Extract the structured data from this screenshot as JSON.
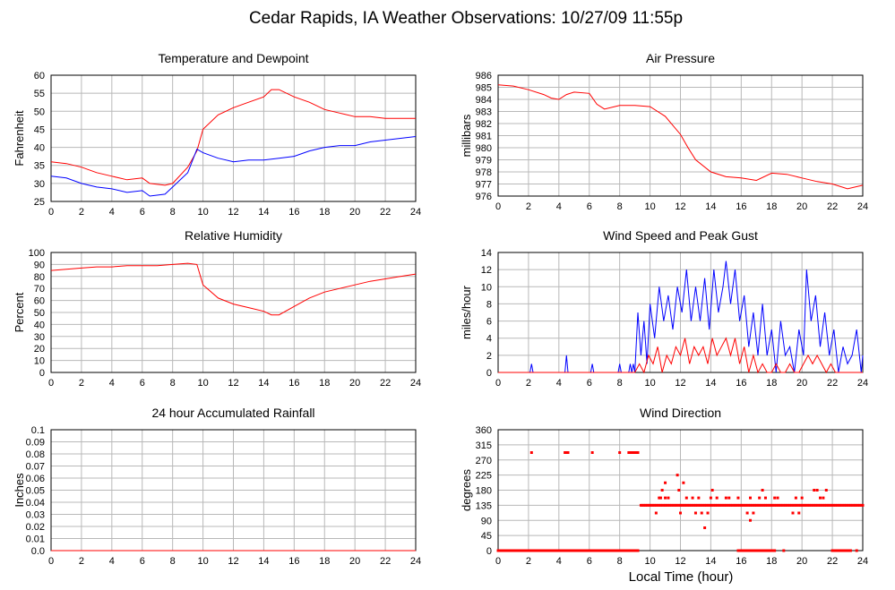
{
  "title": "Cedar Rapids, IA Weather Observations: 10/27/09 11:55p",
  "xlabel": "Local Time (hour)",
  "chart_data": [
    {
      "type": "line",
      "title": "Temperature and Dewpoint",
      "ylabel": "Fahrenheit",
      "xlim": [
        0,
        24
      ],
      "ylim": [
        25,
        60
      ],
      "xticks": [
        0,
        2,
        4,
        6,
        8,
        10,
        12,
        14,
        16,
        18,
        20,
        22,
        24
      ],
      "yticks": [
        25,
        30,
        35,
        40,
        45,
        50,
        55,
        60
      ],
      "grid": true,
      "series": [
        {
          "color": "#ff0000",
          "x": [
            0,
            1,
            2,
            3,
            4,
            5,
            6,
            6.5,
            7.5,
            8,
            9,
            9.6,
            10,
            11,
            12,
            13,
            14,
            14.5,
            15,
            16,
            17,
            18,
            19,
            20,
            21,
            22,
            23,
            24
          ],
          "y": [
            36,
            35.5,
            34.5,
            33,
            32,
            31,
            31.5,
            30,
            29.5,
            30,
            34.5,
            39,
            45,
            49,
            51,
            52.5,
            54,
            56,
            56,
            54,
            52.5,
            50.5,
            49.5,
            48.5,
            48.5,
            48,
            48,
            48
          ]
        },
        {
          "color": "#0000ff",
          "x": [
            0,
            1,
            2,
            3,
            4,
            5,
            6,
            6.5,
            7.5,
            8,
            9,
            9.6,
            10,
            11,
            12,
            13,
            14,
            15,
            16,
            17,
            18,
            19,
            20,
            21,
            22,
            23,
            24
          ],
          "y": [
            32,
            31.5,
            30,
            29,
            28.5,
            27.5,
            28,
            26.5,
            27,
            29,
            33,
            39.5,
            38.5,
            37,
            36,
            36.5,
            36.5,
            37,
            37.5,
            39,
            40,
            40.5,
            40.5,
            41.5,
            42,
            42.5,
            43
          ]
        }
      ]
    },
    {
      "type": "line",
      "title": "Air Pressure",
      "ylabel": "millibars",
      "xlim": [
        0,
        24
      ],
      "ylim": [
        976,
        986
      ],
      "xticks": [
        0,
        2,
        4,
        6,
        8,
        10,
        12,
        14,
        16,
        18,
        20,
        22,
        24
      ],
      "yticks": [
        976,
        977,
        978,
        979,
        980,
        981,
        982,
        983,
        984,
        985,
        986
      ],
      "grid": true,
      "series": [
        {
          "color": "#ff0000",
          "x": [
            0,
            1,
            2,
            3,
            3.5,
            4,
            4.5,
            5,
            6,
            6.5,
            7,
            8,
            9,
            10,
            11,
            12,
            12.5,
            13,
            14,
            15,
            16,
            17,
            18,
            19,
            20,
            21,
            22,
            23,
            24
          ],
          "y": [
            985.2,
            985.1,
            984.8,
            984.4,
            984.1,
            984.0,
            984.4,
            984.6,
            984.5,
            983.6,
            983.2,
            983.5,
            983.5,
            983.4,
            982.6,
            981.1,
            980.0,
            979.0,
            978.0,
            977.6,
            977.5,
            977.3,
            977.9,
            977.8,
            977.5,
            977.2,
            977.0,
            976.6,
            976.9
          ]
        }
      ]
    },
    {
      "type": "line",
      "title": "Relative Humidity",
      "ylabel": "Percent",
      "xlim": [
        0,
        24
      ],
      "ylim": [
        0,
        100
      ],
      "xticks": [
        0,
        2,
        4,
        6,
        8,
        10,
        12,
        14,
        16,
        18,
        20,
        22,
        24
      ],
      "yticks": [
        0,
        10,
        20,
        30,
        40,
        50,
        60,
        70,
        80,
        90,
        100
      ],
      "grid": true,
      "series": [
        {
          "color": "#ff0000",
          "x": [
            0,
            1,
            2,
            3,
            4,
            5,
            6,
            7,
            8,
            9,
            9.6,
            10,
            11,
            12,
            13,
            14,
            14.5,
            15,
            16,
            17,
            18,
            19,
            20,
            21,
            22,
            23,
            24
          ],
          "y": [
            85,
            86,
            87,
            88,
            88,
            89,
            89,
            89,
            90,
            91,
            90,
            73,
            62,
            57,
            54,
            51,
            48,
            48,
            55,
            62,
            67,
            70,
            73,
            76,
            78,
            80,
            82
          ]
        }
      ]
    },
    {
      "type": "line",
      "title": "Wind Speed and Peak Gust",
      "ylabel": "miles/hour",
      "xlim": [
        0,
        24
      ],
      "ylim": [
        0,
        14
      ],
      "xticks": [
        0,
        2,
        4,
        6,
        8,
        10,
        12,
        14,
        16,
        18,
        20,
        22,
        24
      ],
      "yticks": [
        0,
        2,
        4,
        6,
        8,
        10,
        12,
        14
      ],
      "grid": true,
      "series": [
        {
          "color": "#0000ff",
          "x": [
            0,
            2.1,
            2.2,
            2.3,
            4.4,
            4.5,
            4.6,
            6.1,
            6.2,
            6.3,
            7.9,
            8.0,
            8.1,
            8.6,
            8.7,
            8.8,
            8.9,
            9.0,
            9.2,
            9.4,
            9.6,
            9.8,
            10.0,
            10.3,
            10.6,
            10.9,
            11.2,
            11.5,
            11.8,
            12.1,
            12.4,
            12.7,
            13.0,
            13.3,
            13.6,
            13.9,
            14.2,
            14.5,
            14.8,
            15.0,
            15.3,
            15.6,
            15.9,
            16.2,
            16.5,
            16.8,
            17.1,
            17.4,
            17.7,
            18.0,
            18.3,
            18.6,
            18.9,
            19.2,
            19.5,
            19.8,
            20.1,
            20.3,
            20.6,
            20.9,
            21.2,
            21.5,
            21.8,
            22.1,
            22.4,
            22.7,
            23.0,
            23.3,
            23.6,
            23.9,
            24
          ],
          "y": [
            0,
            0,
            1,
            0,
            0,
            2,
            0,
            0,
            1,
            0,
            0,
            1,
            0,
            0,
            1,
            0,
            1,
            0,
            7,
            2,
            6,
            1,
            8,
            4,
            10,
            6,
            9,
            5,
            10,
            7,
            12,
            6,
            10,
            6,
            11,
            5,
            12,
            7,
            10,
            13,
            8,
            12,
            6,
            9,
            3,
            7,
            2,
            8,
            2,
            5,
            0,
            6,
            2,
            3,
            0,
            5,
            2,
            12,
            6,
            9,
            3,
            7,
            2,
            5,
            0,
            3,
            1,
            2,
            5,
            0,
            2
          ]
        },
        {
          "color": "#ff0000",
          "x": [
            0,
            9.0,
            9.3,
            9.6,
            9.9,
            10.2,
            10.5,
            10.8,
            11.1,
            11.4,
            11.7,
            12.0,
            12.3,
            12.6,
            12.9,
            13.2,
            13.5,
            13.8,
            14.1,
            14.4,
            14.7,
            15.0,
            15.3,
            15.6,
            15.9,
            16.2,
            16.5,
            16.8,
            17.1,
            17.4,
            17.7,
            18.0,
            18.3,
            18.6,
            18.9,
            19.2,
            19.5,
            19.8,
            20.1,
            20.4,
            20.7,
            21.0,
            21.3,
            21.6,
            21.9,
            22.2,
            22.5,
            24
          ],
          "y": [
            0,
            0,
            1,
            0,
            2,
            1,
            3,
            0,
            2,
            1,
            3,
            2,
            4,
            1,
            3,
            2,
            3,
            1,
            4,
            2,
            3,
            4,
            2,
            4,
            1,
            3,
            0,
            2,
            0,
            1,
            0,
            0,
            1,
            0,
            0,
            1,
            0,
            0,
            1,
            2,
            1,
            2,
            1,
            0,
            1,
            0,
            0,
            0
          ]
        }
      ]
    },
    {
      "type": "line",
      "title": "24 hour Accumulated Rainfall",
      "ylabel": "Inches",
      "xlim": [
        0,
        24
      ],
      "ylim": [
        0,
        0.1
      ],
      "xticks": [
        0,
        2,
        4,
        6,
        8,
        10,
        12,
        14,
        16,
        18,
        20,
        22,
        24
      ],
      "yticks": [
        0.0,
        0.01,
        0.02,
        0.03,
        0.04,
        0.05,
        0.06,
        0.07,
        0.08,
        0.09,
        0.1
      ],
      "yticklabels": [
        "0.0",
        "0.01",
        "0.02",
        "0.03",
        "0.04",
        "0.05",
        "0.06",
        "0.07",
        "0.08",
        "0.09",
        "0.1"
      ],
      "grid": true,
      "series": [
        {
          "color": "#ff0000",
          "x": [
            0,
            24
          ],
          "y": [
            0,
            0
          ]
        }
      ]
    },
    {
      "type": "scatter",
      "title": "Wind Direction",
      "ylabel": "degrees",
      "xlabel": "Local Time (hour)",
      "xlim": [
        0,
        24
      ],
      "ylim": [
        0,
        360
      ],
      "xticks": [
        0,
        2,
        4,
        6,
        8,
        10,
        12,
        14,
        16,
        18,
        20,
        22,
        24
      ],
      "yticks": [
        0,
        45,
        90,
        135,
        180,
        225,
        270,
        315,
        360
      ],
      "grid": true,
      "series": [
        {
          "color": "#ff0000",
          "runs": [
            {
              "from": 0,
              "to": 9.2,
              "step": 0.1,
              "y": 0
            },
            {
              "from": 9.4,
              "to": 24,
              "step": 0.1,
              "y": 135
            },
            {
              "from": 15.8,
              "to": 18.2,
              "step": 0.1,
              "y": 0
            },
            {
              "from": 22.0,
              "to": 23.2,
              "step": 0.12,
              "y": 0
            }
          ],
          "x": [
            2.2,
            4.4,
            4.5,
            4.6,
            6.2,
            8.0,
            8.6,
            8.7,
            8.8,
            8.9,
            9.0,
            9.1,
            9.2,
            10.4,
            10.6,
            10.8,
            11.0,
            10.7,
            11.2,
            11.8,
            11.9,
            12.2,
            12.4,
            13.0,
            13.2,
            13.6,
            13.8,
            14.1,
            14.4,
            15.2,
            15.8,
            16.4,
            16.6,
            16.8,
            17.2,
            17.4,
            17.6,
            18.2,
            18.8,
            19.6,
            19.8,
            20.8,
            21.0,
            21.2,
            21.4,
            21.6,
            11.0,
            12.0,
            13.4,
            14.0,
            16.6,
            12.8,
            15.0,
            19.4,
            18.4,
            20.0,
            22.0,
            22.8,
            23.6
          ],
          "y": [
            292,
            292,
            292,
            292,
            292,
            292,
            292,
            292,
            292,
            292,
            292,
            292,
            292,
            112,
            157,
            180,
            202,
            157,
            157,
            225,
            180,
            202,
            157,
            112,
            157,
            68,
            112,
            180,
            157,
            157,
            157,
            112,
            90,
            112,
            157,
            180,
            157,
            157,
            0,
            157,
            112,
            180,
            180,
            157,
            157,
            180,
            157,
            112,
            112,
            157,
            157,
            157,
            157,
            112,
            157,
            157,
            0,
            0,
            0
          ]
        }
      ]
    }
  ]
}
